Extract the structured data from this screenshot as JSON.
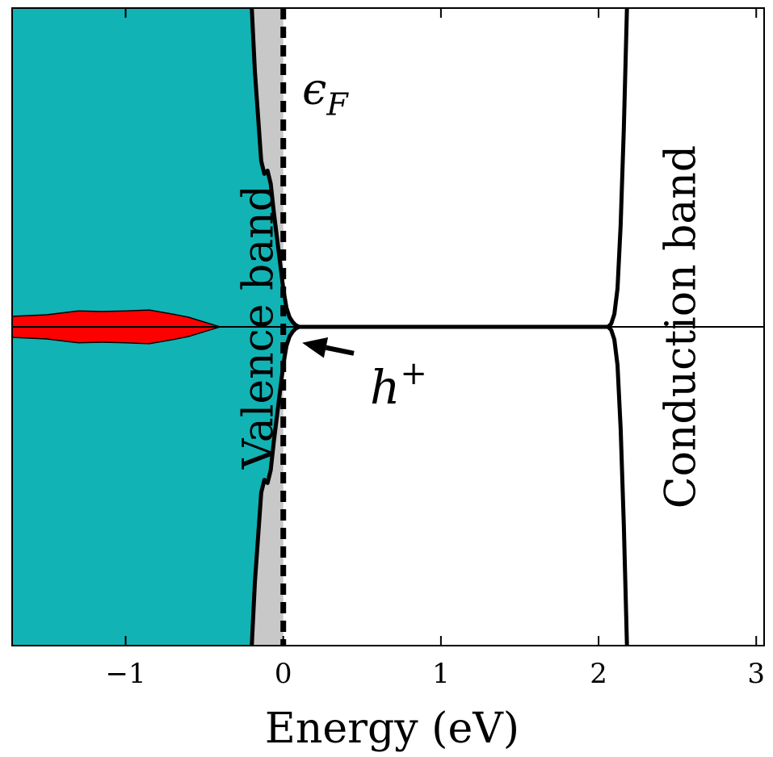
{
  "chart_data": {
    "type": "area",
    "xlabel": "Energy (eV)",
    "ylabel": "",
    "xlim": [
      -1.72,
      3.05
    ],
    "ylim": [
      -1.0,
      1.0
    ],
    "x_ticks": [
      -1,
      0,
      1,
      2,
      3
    ],
    "y_ticks": [],
    "grid": false,
    "fermi_level": 0.0,
    "colors": {
      "valence_fill": "#12b3b5",
      "hole_fill": "#c8c8c8",
      "defect_fill": "#ff0000",
      "curve": "#000000",
      "fermi_line": "#000000"
    },
    "series": [
      {
        "kind": "valence-band-dos-upper",
        "x": [
          -0.2,
          -0.18,
          -0.16,
          -0.14,
          -0.12,
          -0.1,
          -0.08,
          -0.06,
          -0.04,
          -0.02,
          0.0,
          0.02,
          0.04,
          0.06,
          0.08,
          0.1
        ],
        "y": [
          1.0,
          0.8,
          0.66,
          0.52,
          0.48,
          0.49,
          0.45,
          0.36,
          0.28,
          0.2,
          0.12,
          0.06,
          0.03,
          0.015,
          0.005,
          0.0
        ]
      },
      {
        "kind": "conduction-band-dos-upper",
        "x": [
          2.06,
          2.08,
          2.1,
          2.12,
          2.14,
          2.16,
          2.18
        ],
        "y": [
          0.0,
          0.01,
          0.04,
          0.12,
          0.32,
          0.62,
          1.0
        ]
      },
      {
        "kind": "defect-states",
        "x": [
          -1.72,
          -1.5,
          -1.3,
          -1.15,
          -1.0,
          -0.85,
          -0.7,
          -0.6,
          -0.5,
          -0.4
        ],
        "y": [
          0.033,
          0.038,
          0.05,
          0.048,
          0.05,
          0.053,
          0.04,
          0.03,
          0.015,
          0.0
        ]
      }
    ],
    "annotations": [
      {
        "id": "fermi",
        "text": "ϵ",
        "sub": "F",
        "x": 0.12,
        "y": 0.7
      },
      {
        "id": "hole",
        "text": "h",
        "sup": "+",
        "x": 0.55,
        "y": -0.24,
        "arrow_to": [
          0.12,
          -0.05
        ]
      }
    ],
    "band_labels": {
      "valence": "Valence band",
      "conduction": "Conduction band"
    }
  }
}
